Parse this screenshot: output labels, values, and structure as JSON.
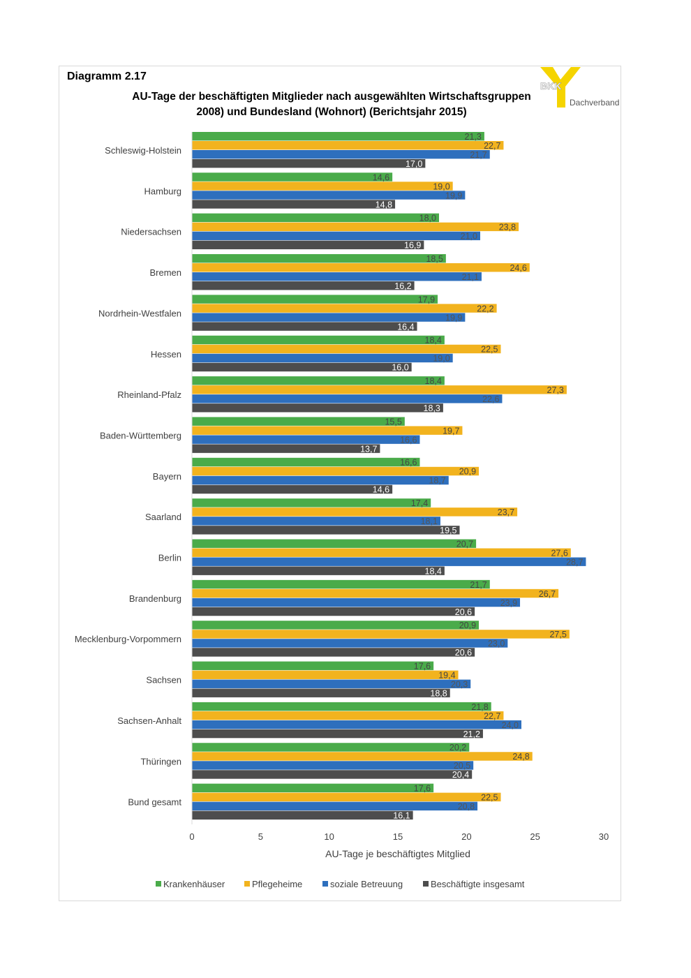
{
  "header": {
    "diagram_label": "Diagramm 2.17",
    "title_line1": "AU-Tage der beschäftigten Mitglieder nach ausgewählten Wirtschaftsgruppen",
    "title_line2": "2008) und Bundesland (Wohnort) (Berichtsjahr 2015)"
  },
  "logo": {
    "text_bkk": "BKK",
    "text_sub": "Dachverband",
    "color": "#f5d400"
  },
  "chart_data": {
    "type": "bar",
    "orientation": "horizontal",
    "categories": [
      "Schleswig-Holstein",
      "Hamburg",
      "Niedersachsen",
      "Bremen",
      "Nordrhein-Westfalen",
      "Hessen",
      "Rheinland-Pfalz",
      "Baden-Württemberg",
      "Bayern",
      "Saarland",
      "Berlin",
      "Brandenburg",
      "Mecklenburg-Vorpommern",
      "Sachsen",
      "Sachsen-Anhalt",
      "Thüringen",
      "Bund gesamt"
    ],
    "series": [
      {
        "name": "Krankenhäuser",
        "color": "#4aab4a",
        "values": [
          21.3,
          14.6,
          18.0,
          18.5,
          17.9,
          18.4,
          18.4,
          15.5,
          16.6,
          17.4,
          20.7,
          21.7,
          20.9,
          17.6,
          21.8,
          20.2,
          17.6
        ]
      },
      {
        "name": "Pflegeheime",
        "color": "#f2b31e",
        "values": [
          22.7,
          19.0,
          23.8,
          24.6,
          22.2,
          22.5,
          27.3,
          19.7,
          20.9,
          23.7,
          27.6,
          26.7,
          27.5,
          19.4,
          22.7,
          24.8,
          22.5
        ]
      },
      {
        "name": "soziale Betreuung",
        "color": "#2e6fbd",
        "values": [
          21.7,
          19.9,
          21.0,
          21.1,
          19.9,
          19.0,
          22.6,
          16.6,
          18.7,
          18.1,
          28.7,
          23.9,
          23.0,
          20.3,
          24.0,
          20.5,
          20.8
        ]
      },
      {
        "name": "Beschäftigte insgesamt",
        "color": "#4d4d4d",
        "values": [
          17.0,
          14.8,
          16.9,
          16.2,
          16.4,
          16.0,
          18.3,
          13.7,
          14.6,
          19.5,
          18.4,
          20.6,
          20.6,
          18.8,
          21.2,
          20.4,
          16.1
        ]
      }
    ],
    "xlabel": "AU-Tage je beschäftigtes Mitglied",
    "xlim": [
      0,
      30
    ],
    "xticks": [
      0,
      5,
      10,
      15,
      20,
      25,
      30
    ],
    "legend_position": "bottom",
    "value_label_colors": [
      "#444444",
      "#444444",
      "#555555",
      "#ffffff"
    ],
    "grid": false
  }
}
